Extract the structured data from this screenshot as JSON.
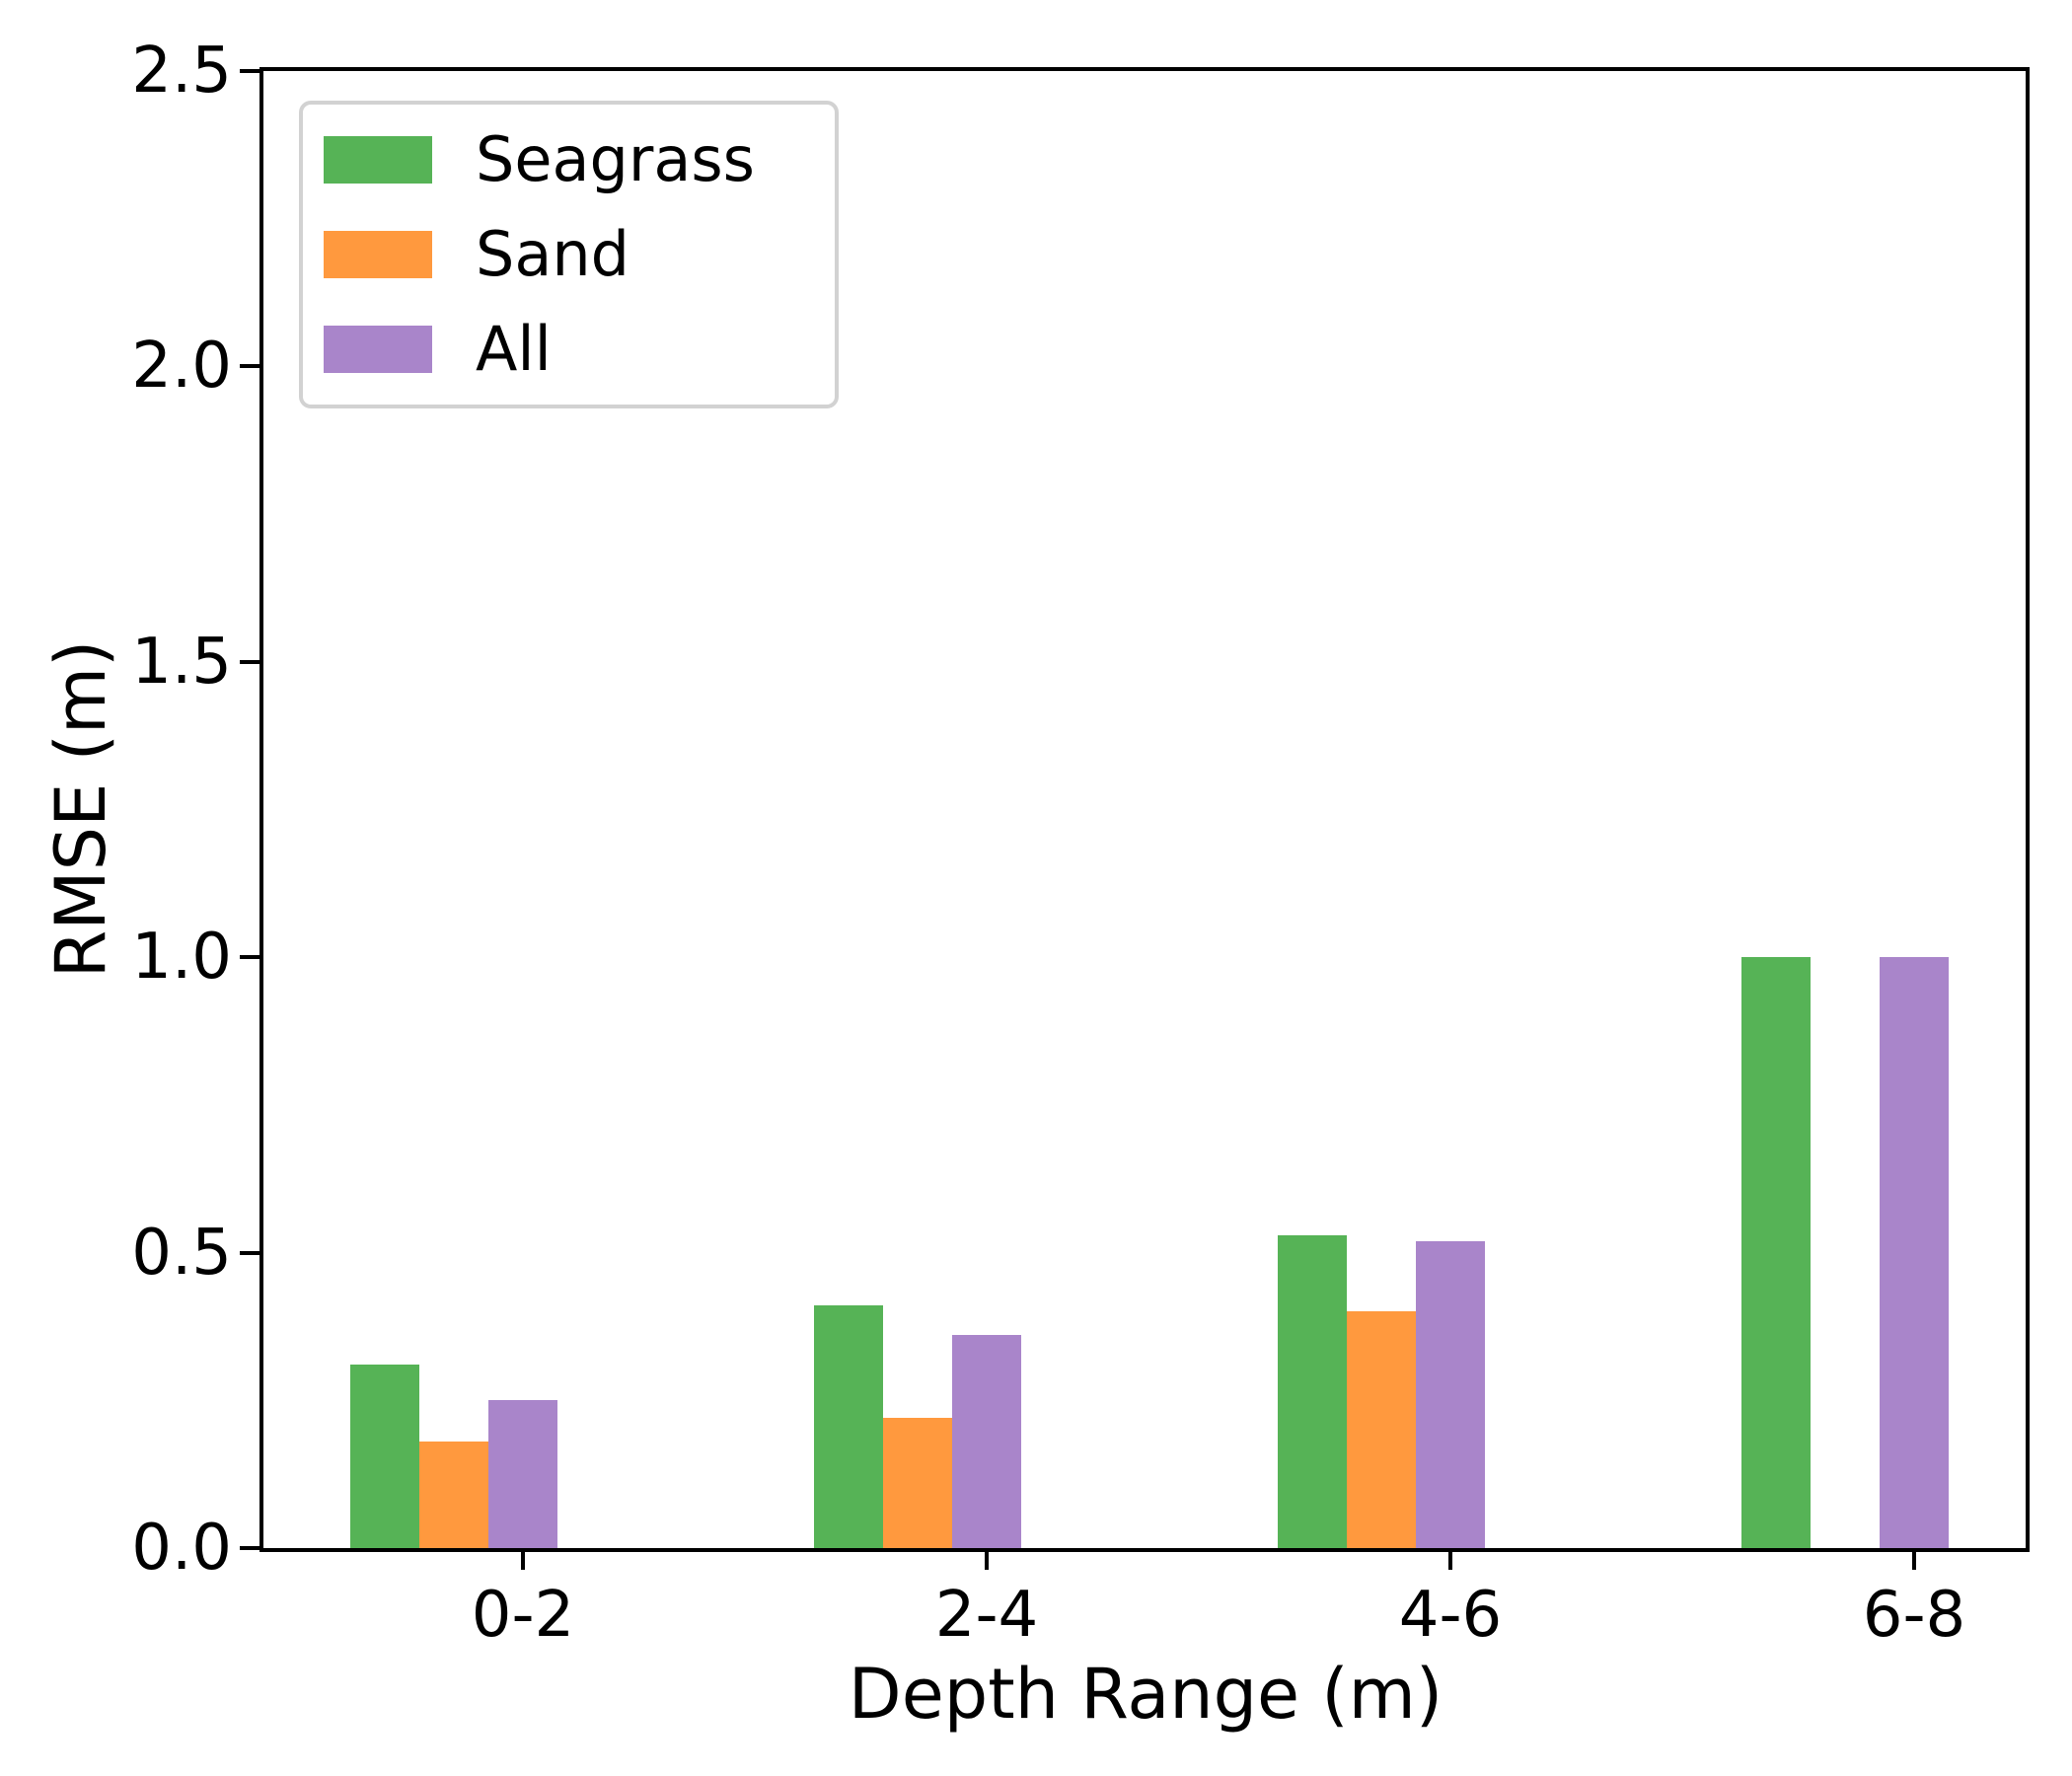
{
  "chart_data": {
    "type": "bar",
    "title": "",
    "xlabel": "Depth Range (m)",
    "ylabel": "RMSE (m)",
    "categories": [
      "0-2",
      "2-4",
      "4-6",
      "6-8"
    ],
    "series": [
      {
        "name": "Seagrass",
        "color": "#56b356",
        "values": [
          0.31,
          0.41,
          0.53,
          1.0
        ]
      },
      {
        "name": "Sand",
        "color": "#ff993e",
        "values": [
          0.18,
          0.22,
          0.4,
          0
        ]
      },
      {
        "name": "All",
        "color": "#a985ca",
        "values": [
          0.25,
          0.36,
          0.52,
          1.0
        ]
      }
    ],
    "ylim": [
      0,
      2.5
    ],
    "yticks": [
      "0.0",
      "0.5",
      "1.0",
      "1.5",
      "2.0",
      "2.5"
    ],
    "grid": false,
    "legend_position": "upper-left",
    "axis_color": "#000000",
    "legend_border_color": "#d2d2d2",
    "background": "#ffffff"
  }
}
